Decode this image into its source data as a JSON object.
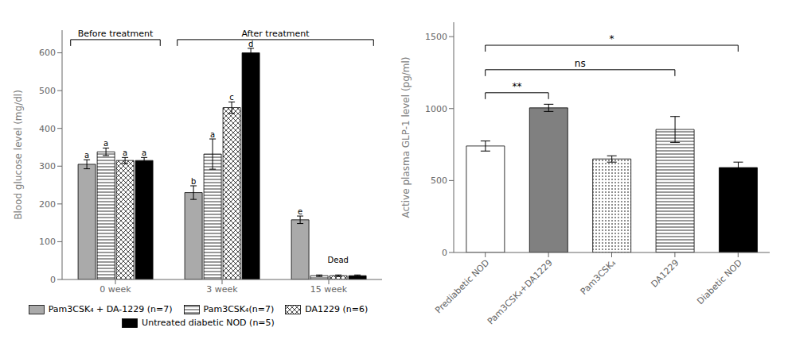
{
  "chart_data": [
    {
      "type": "bar",
      "ylabel": "Blood glucose level (mg/dl)",
      "ylim": [
        0,
        660
      ],
      "yticks": [
        0,
        100,
        200,
        300,
        400,
        500,
        600
      ],
      "categories": [
        "0 week",
        "3 week",
        "15 week"
      ],
      "series": [
        {
          "name": "Pam3CSK₄ + DA-1229 (n=7)",
          "color": "#aaaaaa",
          "values": [
            305,
            230,
            158
          ],
          "errors": [
            12,
            18,
            10
          ],
          "letters": [
            "a",
            "b",
            "e"
          ]
        },
        {
          "name": "Pam3CSK₄(n=7)",
          "color": "white",
          "values": [
            338,
            332,
            10
          ],
          "errors": [
            10,
            40,
            2
          ],
          "letters": [
            "a",
            "a",
            null
          ]
        },
        {
          "name": "DA1229 (n=6)",
          "color": "white",
          "values": [
            315,
            455,
            10
          ],
          "errors": [
            8,
            15,
            2
          ],
          "letters": [
            "a",
            "c",
            null
          ]
        },
        {
          "name": "Untreated diabetic NOD (n=5)",
          "color": "black",
          "values": [
            315,
            600,
            10
          ],
          "errors": [
            8,
            12,
            2
          ],
          "letters": [
            "a",
            "d",
            null
          ]
        }
      ],
      "annotations": [
        {
          "text": "Before treatment",
          "from": "0 week",
          "to": "0 week",
          "y": 635
        },
        {
          "text": "After treatment",
          "from": "3 week",
          "to": "15 week",
          "y": 635
        },
        {
          "text": "Dead",
          "x": "15 week",
          "y": 45
        }
      ],
      "legend": "bottom",
      "grid": false
    },
    {
      "type": "bar",
      "ylabel": "Active plasma GLP-1 level (pg/ml)",
      "ylim": [
        0,
        1600
      ],
      "yticks": [
        0,
        500,
        1000,
        1500
      ],
      "categories": [
        "Prediabetic NOD",
        "Pam3CSK₄+DA1229",
        "Pam3CSK₄",
        "DA1229",
        "Diabetic NOD"
      ],
      "values": [
        740,
        1005,
        650,
        855,
        590
      ],
      "errors": [
        35,
        25,
        22,
        90,
        38
      ],
      "colors": [
        "white",
        "#808080",
        "white",
        "white",
        "black"
      ],
      "annotations": [
        {
          "text": "**",
          "from": "Prediabetic NOD",
          "to": "Pam3CSK₄+DA1229",
          "y": 1110
        },
        {
          "text": "ns",
          "from": "Prediabetic NOD",
          "to": "DA1229",
          "y": 1270
        },
        {
          "text": "*",
          "from": "Prediabetic NOD",
          "to": "Diabetic NOD",
          "y": 1440
        }
      ],
      "grid": false
    }
  ]
}
